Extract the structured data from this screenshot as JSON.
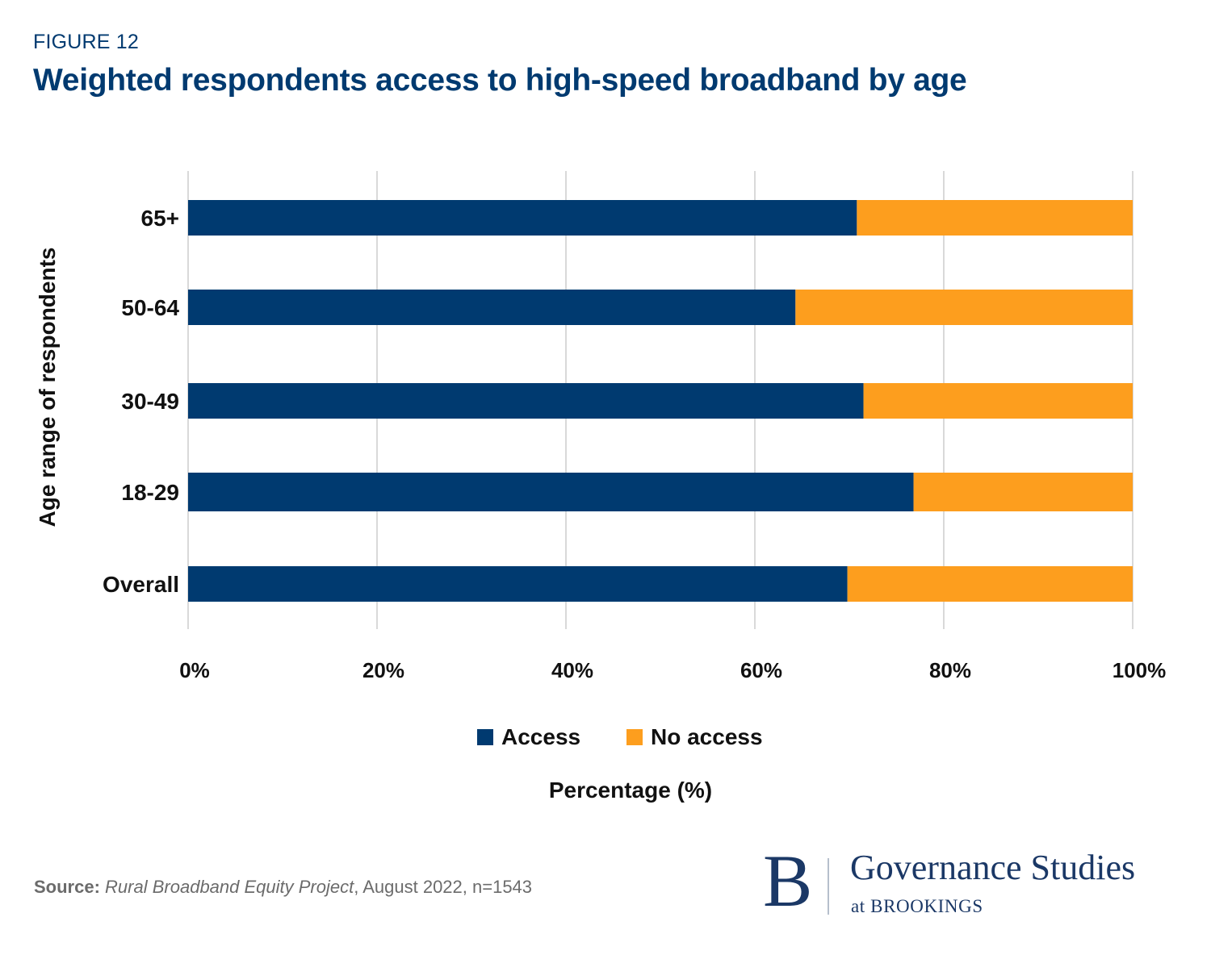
{
  "header": {
    "figure_label": "FIGURE 12",
    "title": "Weighted respondents access to high-speed broadband by age"
  },
  "colors": {
    "access": "#003a70",
    "no_access": "#fd9e1e",
    "grid": "#d9d9d9",
    "title": "#003a70"
  },
  "chart_data": {
    "type": "bar",
    "orientation": "horizontal",
    "stacked": true,
    "title": "Weighted respondents access to high-speed broadband by age",
    "xlabel": "Percentage (%)",
    "ylabel": "Age range of respondents",
    "categories": [
      "65+",
      "50-64",
      "30-49",
      "18-29",
      "Overall"
    ],
    "series": [
      {
        "name": "Access",
        "values": [
          70.8,
          64.3,
          71.5,
          76.8,
          69.8
        ]
      },
      {
        "name": "No access",
        "values": [
          29.2,
          35.7,
          28.5,
          23.2,
          30.2
        ]
      }
    ],
    "xlim": [
      0,
      100
    ],
    "xticks": [
      0,
      20,
      40,
      60,
      80,
      100
    ],
    "xtick_labels": [
      "0%",
      "20%",
      "40%",
      "60%",
      "80%",
      "100%"
    ],
    "grid": true,
    "legend": {
      "position": "bottom-center",
      "entries": [
        "Access",
        "No access"
      ]
    }
  },
  "footer": {
    "source_label": "Source:",
    "source_title": "Rural Broadband Equity Project",
    "source_rest": ", August 2022, n=1543",
    "logo_letter": "B",
    "logo_main": "Governance Studies",
    "logo_sub": "at BROOKINGS"
  }
}
